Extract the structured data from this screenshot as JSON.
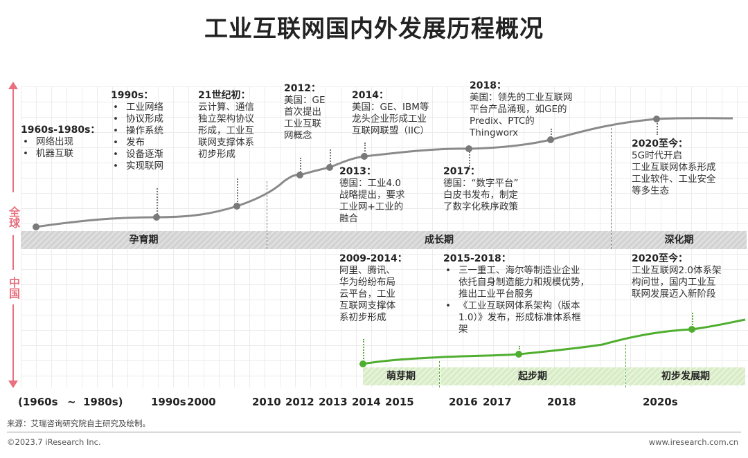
{
  "title": "工业互联网国内外发展历程概况",
  "regions": {
    "global": "全球",
    "china": "中国"
  },
  "colors": {
    "global_line": "#8a8a8a",
    "global_dot": "#7a7a7a",
    "china_line": "#4fae2f",
    "china_dot": "#4fae2f",
    "accent": "#e8707f"
  },
  "phases_global": [
    {
      "label": "孕育期"
    },
    {
      "label": "成长期"
    },
    {
      "label": "深化期"
    }
  ],
  "phases_china": [
    {
      "label": "萌芽期"
    },
    {
      "label": "起步期"
    },
    {
      "label": "初步发展期"
    }
  ],
  "global_notes": {
    "n1960": {
      "heading": "1960s-1980s：",
      "items": [
        "网络出现",
        "机器互联"
      ]
    },
    "n1990": {
      "heading": "1990s：",
      "items": [
        "工业网络",
        "协议形成",
        "操作系统",
        "发布",
        "设备逐渐",
        "实现联网"
      ]
    },
    "n21": {
      "heading": "21世纪初：",
      "lines": [
        "云计算、通信",
        "独立架构协议",
        "形成，工业互",
        "联网支撑体系",
        "初步形成"
      ]
    },
    "n2012": {
      "heading": "2012：",
      "lines": [
        "美国：GE",
        "首次提出",
        "工业互联",
        "网概念"
      ]
    },
    "n2014": {
      "heading": "2014：",
      "lines": [
        "美国：GE、IBM等",
        "龙头企业形成工业",
        "互联网联盟（IIC）"
      ]
    },
    "n2018": {
      "heading": "2018：",
      "lines": [
        "美国：领先的工业互联网",
        "平台产品涌现，如GE的",
        "Predix、PTC的",
        "Thingworx"
      ]
    },
    "n2013": {
      "heading": "2013：",
      "lines": [
        "德国：工业4.0",
        "战略提出，要求",
        "工业网+工业的",
        "融合"
      ]
    },
    "n2017": {
      "heading": "2017：",
      "lines": [
        "德国：“数字平台”",
        "白皮书发布，制定",
        "了数字化秩序政策"
      ]
    },
    "n2020": {
      "heading": "2020至今：",
      "lines": [
        "5G时代开启",
        "工业互联网体系形成",
        "工业软件、工业安全",
        "等多生态"
      ]
    }
  },
  "china_notes": {
    "c2009": {
      "heading": "2009-2014：",
      "lines": [
        "阿里、腾讯、",
        "华为纷纷布局",
        "云平台，工业",
        "互联网支撑体",
        "系初步形成"
      ]
    },
    "c2015": {
      "heading": "2015-2018：",
      "items": [
        "三一重工、海尔等制造业企业\n依托自身制造能力和规模优势，\n推出工业平台服务",
        "《工业互联网体系架构（版本\n1.0）》发布，形成标准体系框\n架"
      ]
    },
    "c2020": {
      "heading": "2020至今：",
      "lines": [
        "工业互联网2.0体系架",
        "构问世，国内工业互",
        "联网发展迈入新阶段"
      ]
    }
  },
  "axis": {
    "labels": [
      "(1960s",
      "~",
      "1980s)",
      "1990s",
      "2000",
      "2010",
      "2012",
      "2013",
      "2014",
      "2015",
      "2016",
      "2017",
      "2018",
      "2020s"
    ]
  },
  "source": "来源：艾瑞咨询研究院自主研究及绘制。",
  "footer_left": "©2023.7 iResearch Inc.",
  "footer_right": "www.iresearch.com.cn"
}
